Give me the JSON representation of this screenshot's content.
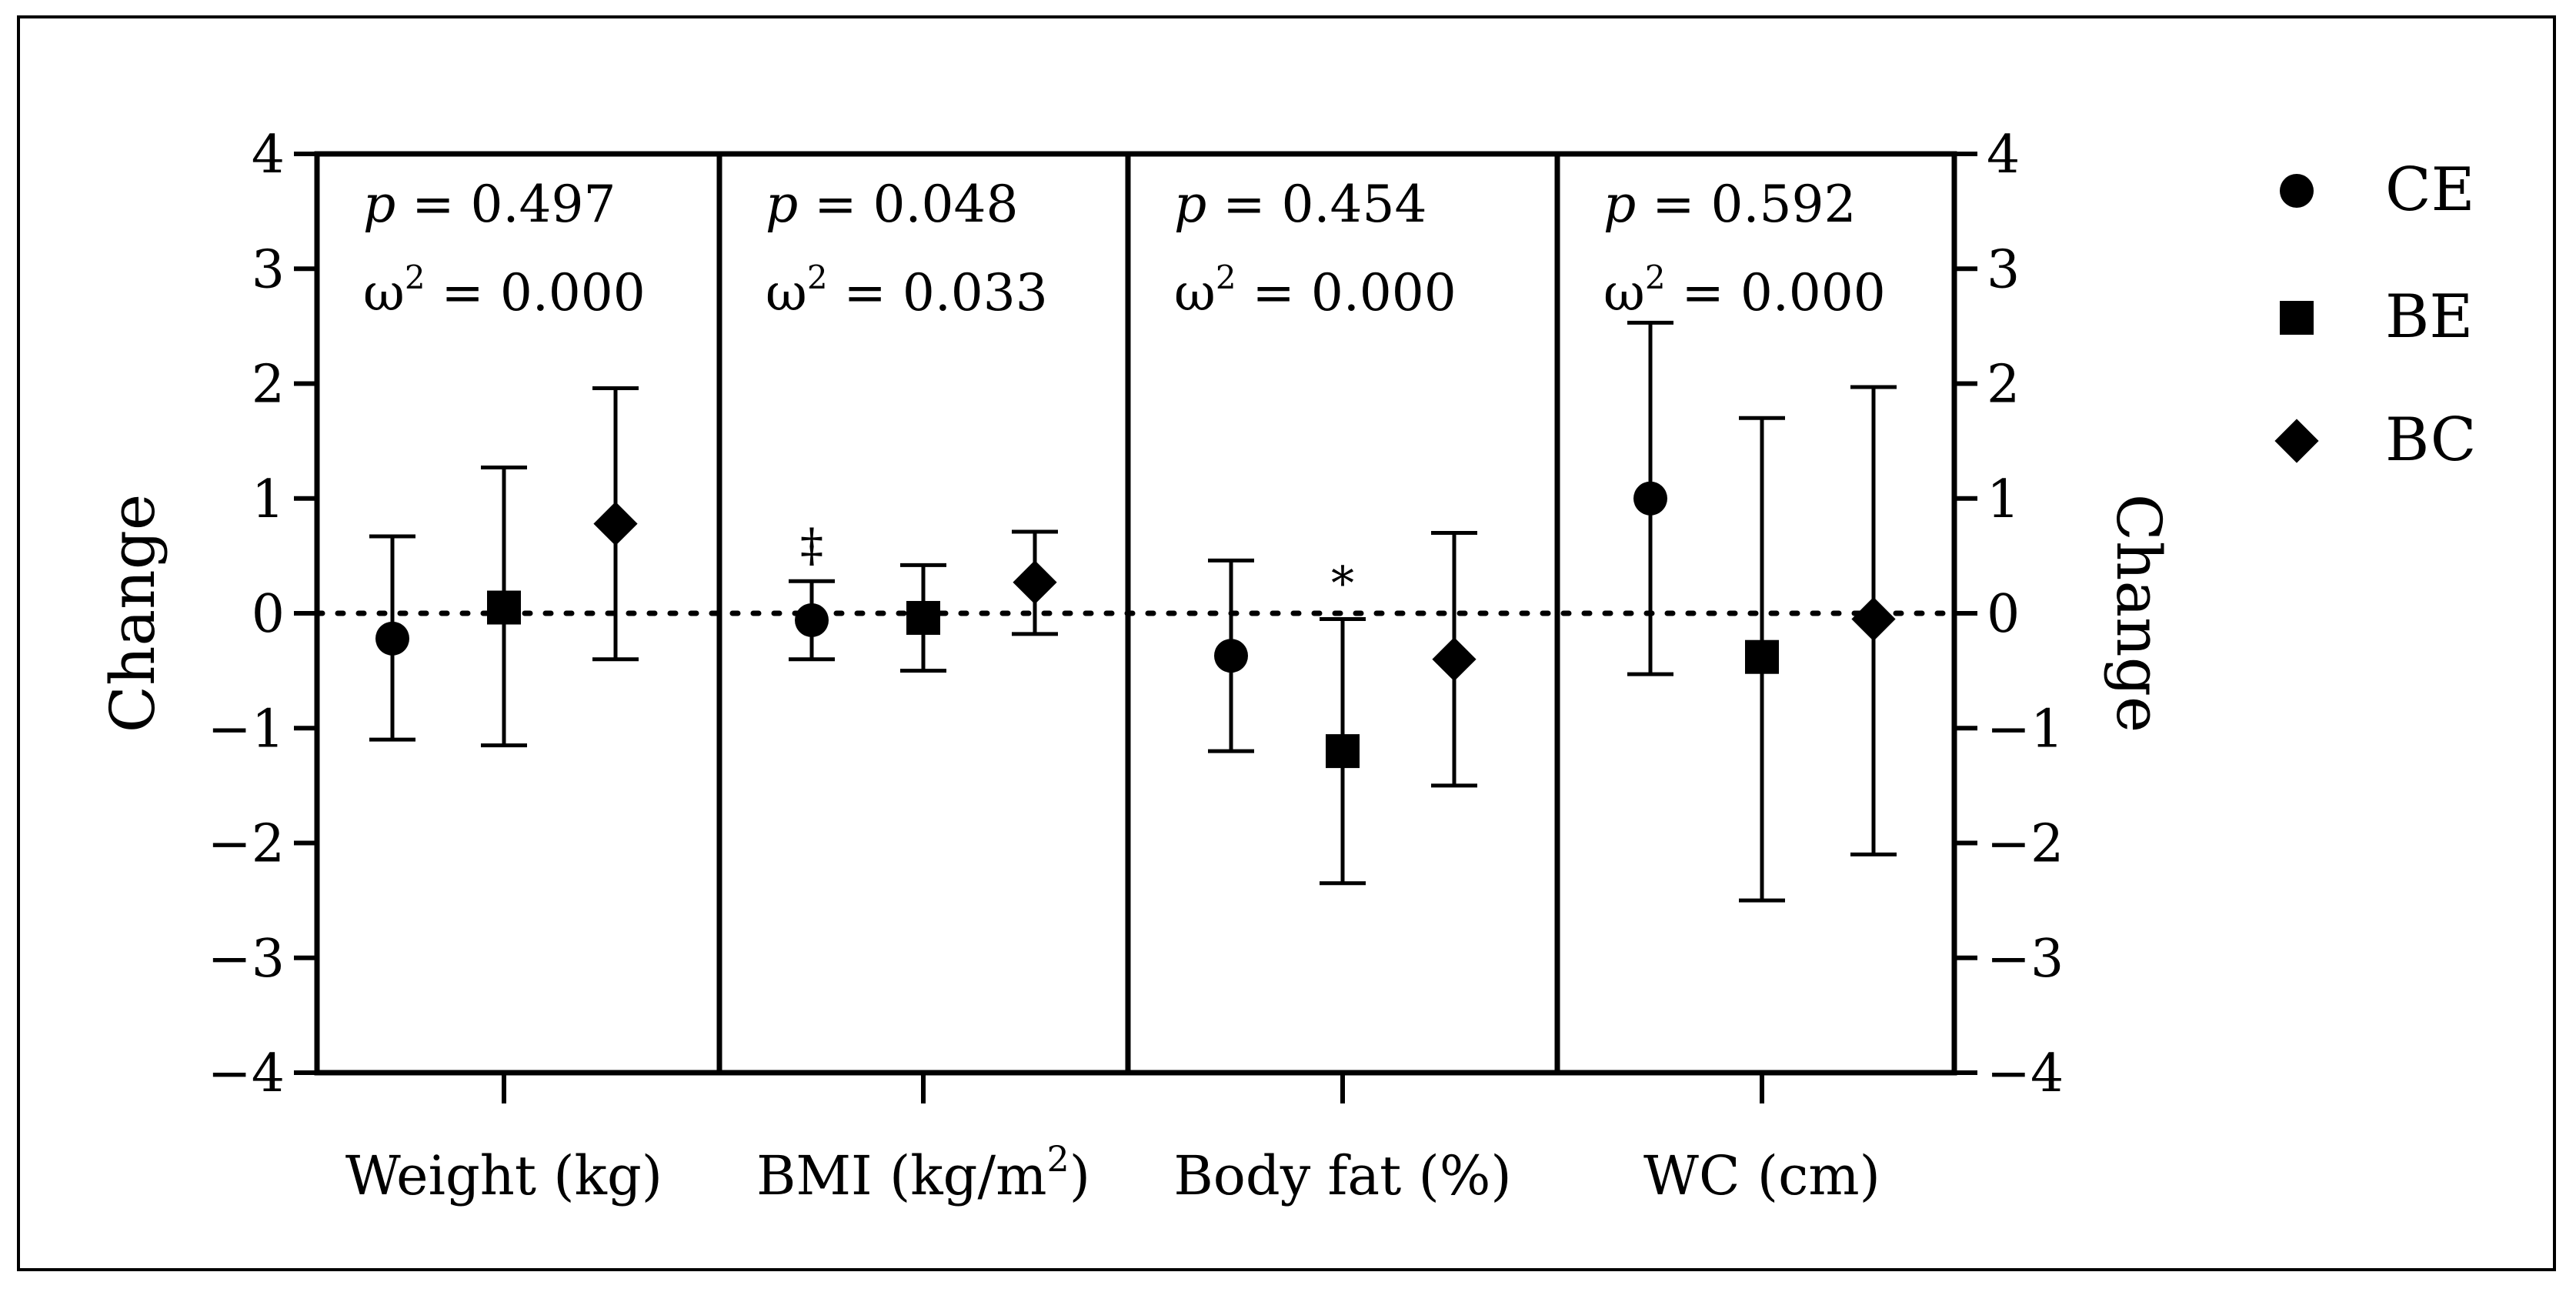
{
  "chart_data": {
    "type": "scatter",
    "subtype": "mean-with-error-bars",
    "ylabel_left": "Change",
    "ylabel_right": "Change",
    "ylim": [
      -4,
      4
    ],
    "yticks": [
      4,
      3,
      2,
      1,
      0,
      -1,
      -2,
      -3,
      -4
    ],
    "ytick_labels": [
      "4",
      "3",
      "2",
      "1",
      "0",
      "−1",
      "−2",
      "−3",
      "−4"
    ],
    "reference_line": 0,
    "legend": [
      {
        "name": "CE",
        "marker": "circle"
      },
      {
        "name": "BE",
        "marker": "square"
      },
      {
        "name": "BC",
        "marker": "diamond"
      }
    ],
    "panels": [
      {
        "category": "Weight (kg)",
        "p_label": "p",
        "p_value": "= 0.497",
        "omega_label": "ω",
        "omega_value": "= 0.000",
        "points": [
          {
            "group": "CE",
            "mean": -0.22,
            "low": -1.1,
            "high": 0.67
          },
          {
            "group": "BE",
            "mean": 0.05,
            "low": -1.15,
            "high": 1.27
          },
          {
            "group": "BC",
            "mean": 0.78,
            "low": -0.4,
            "high": 1.96
          }
        ]
      },
      {
        "category": "BMI (kg/m",
        "category_sup": "2",
        "category_suffix": ")",
        "p_label": "p",
        "p_value": "= 0.048",
        "omega_label": "ω",
        "omega_value": "= 0.033",
        "points": [
          {
            "group": "CE",
            "mean": -0.06,
            "low": -0.4,
            "high": 0.28,
            "mark": "‡"
          },
          {
            "group": "BE",
            "mean": -0.04,
            "low": -0.5,
            "high": 0.42
          },
          {
            "group": "BC",
            "mean": 0.27,
            "low": -0.18,
            "high": 0.71
          }
        ]
      },
      {
        "category": "Body fat (%)",
        "p_label": "p",
        "p_value": "= 0.454",
        "omega_label": "ω",
        "omega_value": "= 0.000",
        "points": [
          {
            "group": "CE",
            "mean": -0.37,
            "low": -1.2,
            "high": 0.46
          },
          {
            "group": "BE",
            "mean": -1.2,
            "low": -2.35,
            "high": -0.05,
            "mark": "*"
          },
          {
            "group": "BC",
            "mean": -0.4,
            "low": -1.5,
            "high": 0.7
          }
        ]
      },
      {
        "category": "WC (cm)",
        "p_label": "p",
        "p_value": "= 0.592",
        "omega_label": "ω",
        "omega_value": "= 0.000",
        "points": [
          {
            "group": "CE",
            "mean": 1.0,
            "low": -0.53,
            "high": 2.53
          },
          {
            "group": "BE",
            "mean": -0.38,
            "low": -2.5,
            "high": 1.7
          },
          {
            "group": "BC",
            "mean": -0.05,
            "low": -2.1,
            "high": 1.97
          }
        ]
      }
    ]
  }
}
